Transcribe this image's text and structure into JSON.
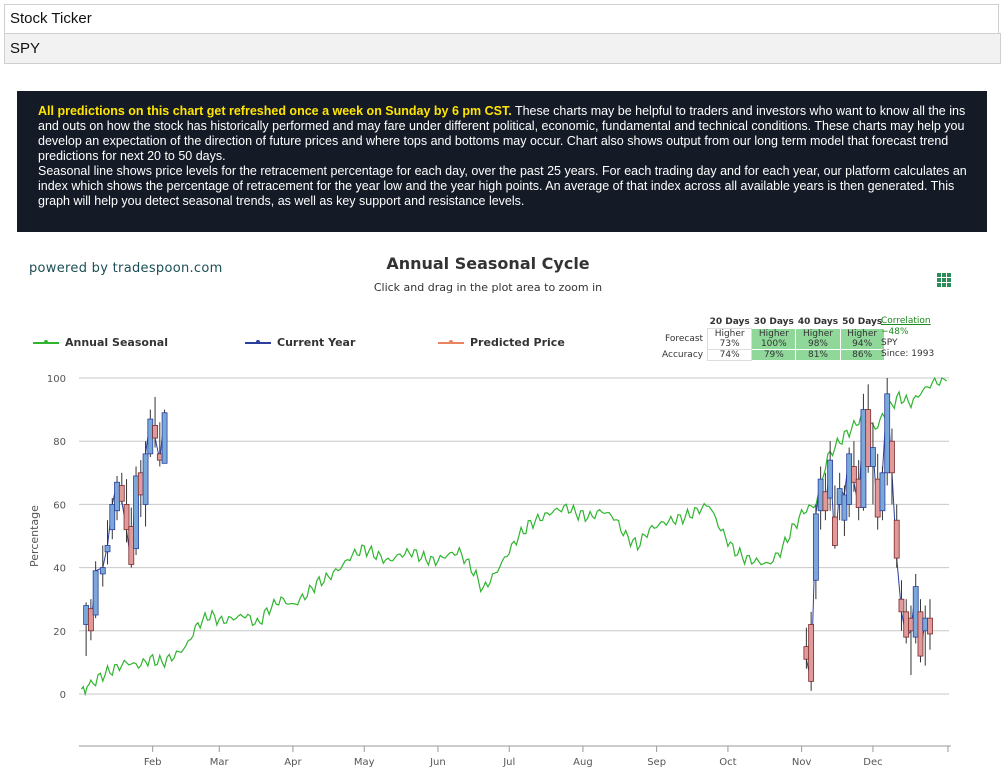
{
  "ticker": {
    "label": "Stock Ticker",
    "value": "SPY"
  },
  "info": {
    "highlight": "All predictions on this chart get refreshed once a week on Sunday by 6 pm CST.",
    "paragraph1": " These charts may be helpful to traders and investors who want to know all the ins and outs on how the stock has historically performed and may fare under different political, economic, fundamental and technical conditions. These charts may help you develop an expectation of the direction of future prices and where tops and bottoms may occur. Chart also shows output from our long term model that forecast trend predictions for next 20 to 50 days.",
    "paragraph2": "Seasonal line shows price levels for the retracement percentage for each day, over the past 25 years. For each trading day and for each year, our platform calculates an index which shows the percentage of retracement for the year low and the year high points. An average of that index across all available years is then generated. This graph will help you detect seasonal trends, as well as key support and resistance levels."
  },
  "powered_by": "powered by tradespoon.com",
  "chart_title": "Annual Seasonal Cycle",
  "chart_subtitle": "Click and drag in the plot area to zoom in",
  "menu_icon": "grid-menu-icon",
  "legend": [
    {
      "label": "Annual Seasonal",
      "color": "#2fb52f"
    },
    {
      "label": "Current Year",
      "color": "#2a3f9e"
    },
    {
      "label": "Predicted Price",
      "color": "#e8845f"
    }
  ],
  "forecast_table": {
    "headers": [
      "20 Days",
      "30 Days",
      "40 Days",
      "50 Days"
    ],
    "forecast_label": "Forecast",
    "accuracy_label": "Accuracy",
    "forecast": [
      {
        "dir": "Higher",
        "pct": "73%"
      },
      {
        "dir": "Higher",
        "pct": "100%"
      },
      {
        "dir": "Higher",
        "pct": "98%"
      },
      {
        "dir": "Higher",
        "pct": "94%"
      }
    ],
    "accuracy": [
      "74%",
      "79%",
      "81%",
      "86%"
    ]
  },
  "correlation": {
    "link": "Correlation",
    "value": "−48%",
    "symbol": "SPY",
    "since": "Since: 1993"
  },
  "colors": {
    "seasonal": "#2fb52f",
    "current": "#2a3f9e",
    "predicted": "#e8845f",
    "candle_up": "#7aa8d8",
    "candle_down": "#e09a9a",
    "grid": "#c8c8c8"
  },
  "chart_data": {
    "type": "line",
    "ylabel": "Percentage",
    "ylim": [
      0,
      100
    ],
    "yticks": [
      0,
      20,
      40,
      60,
      80,
      100
    ],
    "months": [
      "Feb",
      "Mar",
      "Apr",
      "May",
      "Jun",
      "Jul",
      "Aug",
      "Sep",
      "Oct",
      "Nov",
      "Dec"
    ],
    "series": [
      {
        "name": "Annual Seasonal",
        "x_day": [
          1,
          5,
          10,
          15,
          20,
          25,
          30,
          35,
          40,
          45,
          50,
          55,
          60,
          65,
          70,
          75,
          80,
          85,
          90,
          95,
          100,
          105,
          110,
          115,
          120,
          125,
          130,
          135,
          140,
          145,
          150,
          155,
          160,
          165,
          170,
          175,
          180,
          185,
          190,
          195,
          200,
          205,
          210,
          215,
          220,
          225,
          230,
          235,
          240,
          245,
          250,
          255,
          260,
          265,
          270,
          275,
          280,
          285,
          290,
          295,
          300,
          305,
          310,
          315,
          320,
          325,
          330,
          335,
          340,
          345,
          350,
          355,
          360,
          365
        ],
        "values": [
          1,
          3,
          6,
          8,
          10,
          9,
          11,
          10,
          12,
          15,
          22,
          25,
          23,
          24,
          25,
          22,
          27,
          30,
          28,
          31,
          35,
          37,
          40,
          44,
          46,
          44,
          42,
          44,
          45,
          43,
          42,
          44,
          45,
          40,
          33,
          38,
          44,
          50,
          54,
          56,
          58,
          59,
          57,
          56,
          58,
          56,
          50,
          47,
          52,
          54,
          55,
          56,
          58,
          60,
          52,
          46,
          43,
          42,
          41,
          45,
          52,
          58,
          60,
          75,
          80,
          84,
          88,
          84,
          90,
          94,
          92,
          96,
          99,
          99
        ]
      }
    ],
    "current_year_candles": [
      {
        "day": 3,
        "o": 22,
        "h": 29,
        "l": 12,
        "c": 28
      },
      {
        "day": 5,
        "o": 27,
        "h": 30,
        "l": 17,
        "c": 20
      },
      {
        "day": 7,
        "o": 25,
        "h": 42,
        "l": 24,
        "c": 39
      },
      {
        "day": 10,
        "o": 38,
        "h": 47,
        "l": 34,
        "c": 40
      },
      {
        "day": 12,
        "o": 45,
        "h": 55,
        "l": 41,
        "c": 47
      },
      {
        "day": 14,
        "o": 52,
        "h": 62,
        "l": 49,
        "c": 60
      },
      {
        "day": 16,
        "o": 58,
        "h": 69,
        "l": 55,
        "c": 67
      },
      {
        "day": 18,
        "o": 66,
        "h": 70,
        "l": 60,
        "c": 61
      },
      {
        "day": 20,
        "o": 60,
        "h": 68,
        "l": 48,
        "c": 52
      },
      {
        "day": 22,
        "o": 53,
        "h": 59,
        "l": 40,
        "c": 41
      },
      {
        "day": 24,
        "o": 46,
        "h": 72,
        "l": 44,
        "c": 69
      },
      {
        "day": 26,
        "o": 70,
        "h": 74,
        "l": 56,
        "c": 63
      },
      {
        "day": 28,
        "o": 60,
        "h": 80,
        "l": 53,
        "c": 76
      },
      {
        "day": 30,
        "o": 76,
        "h": 90,
        "l": 75,
        "c": 87
      },
      {
        "day": 32,
        "o": 85,
        "h": 94,
        "l": 78,
        "c": 81
      },
      {
        "day": 34,
        "o": 76,
        "h": 86,
        "l": 72,
        "c": 74
      },
      {
        "day": 36,
        "o": 73,
        "h": 90,
        "l": 73,
        "c": 89
      },
      {
        "day": 306,
        "o": 15,
        "h": 21,
        "l": 8,
        "c": 11
      },
      {
        "day": 308,
        "o": 22,
        "h": 26,
        "l": 1,
        "c": 4
      },
      {
        "day": 310,
        "o": 36,
        "h": 60,
        "l": 30,
        "c": 57
      },
      {
        "day": 312,
        "o": 58,
        "h": 72,
        "l": 52,
        "c": 68
      },
      {
        "day": 314,
        "o": 64,
        "h": 70,
        "l": 55,
        "c": 58
      },
      {
        "day": 316,
        "o": 62,
        "h": 80,
        "l": 58,
        "c": 74
      },
      {
        "day": 318,
        "o": 56,
        "h": 66,
        "l": 46,
        "c": 47
      },
      {
        "day": 320,
        "o": 60,
        "h": 70,
        "l": 55,
        "c": 65
      },
      {
        "day": 322,
        "o": 55,
        "h": 66,
        "l": 50,
        "c": 63
      },
      {
        "day": 324,
        "o": 60,
        "h": 78,
        "l": 56,
        "c": 76
      },
      {
        "day": 326,
        "o": 72,
        "h": 80,
        "l": 64,
        "c": 67
      },
      {
        "day": 328,
        "o": 68,
        "h": 74,
        "l": 55,
        "c": 59
      },
      {
        "day": 330,
        "o": 59,
        "h": 95,
        "l": 58,
        "c": 90
      },
      {
        "day": 332,
        "o": 90,
        "h": 98,
        "l": 70,
        "c": 72
      },
      {
        "day": 334,
        "o": 72,
        "h": 86,
        "l": 60,
        "c": 78
      },
      {
        "day": 336,
        "o": 68,
        "h": 76,
        "l": 52,
        "c": 56
      },
      {
        "day": 338,
        "o": 58,
        "h": 72,
        "l": 55,
        "c": 70
      },
      {
        "day": 340,
        "o": 70,
        "h": 100,
        "l": 66,
        "c": 95
      },
      {
        "day": 342,
        "o": 80,
        "h": 84,
        "l": 60,
        "c": 70
      },
      {
        "day": 344,
        "o": 55,
        "h": 60,
        "l": 40,
        "c": 43
      },
      {
        "day": 346,
        "o": 30,
        "h": 36,
        "l": 20,
        "c": 26
      },
      {
        "day": 348,
        "o": 26,
        "h": 30,
        "l": 16,
        "c": 18
      },
      {
        "day": 350,
        "o": 24,
        "h": 28,
        "l": 6,
        "c": 20
      },
      {
        "day": 352,
        "o": 18,
        "h": 38,
        "l": 16,
        "c": 34
      },
      {
        "day": 354,
        "o": 26,
        "h": 30,
        "l": 10,
        "c": 12
      },
      {
        "day": 356,
        "o": 20,
        "h": 28,
        "l": 9,
        "c": 24
      },
      {
        "day": 358,
        "o": 24,
        "h": 30,
        "l": 14,
        "c": 19
      }
    ]
  }
}
